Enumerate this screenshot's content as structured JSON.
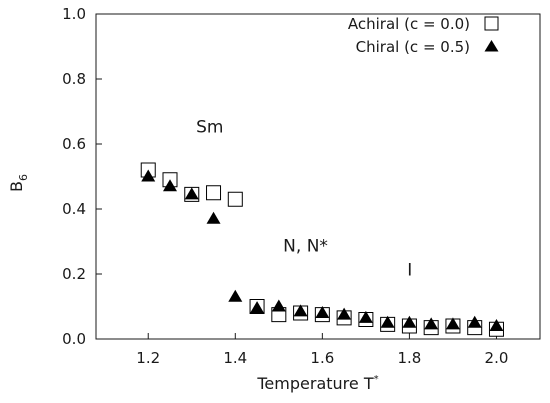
{
  "chart_data": {
    "type": "scatter",
    "xlabel": "Temperature",
    "xlabel_symbol": "T",
    "xlabel_superscript": "*",
    "ylabel": "B",
    "ylabel_subscript": "6",
    "xlim": [
      1.08,
      2.1
    ],
    "ylim": [
      0,
      1.0
    ],
    "x_ticks": [
      "1.2",
      "1.4",
      "1.6",
      "1.8",
      "2.0"
    ],
    "y_ticks": [
      "0.0",
      "0.2",
      "0.4",
      "0.6",
      "0.8",
      "1.0"
    ],
    "x_tick_values": [
      1.2,
      1.4,
      1.6,
      1.8,
      2.0
    ],
    "y_tick_values": [
      0.0,
      0.2,
      0.4,
      0.6,
      0.8,
      1.0
    ],
    "grid": false,
    "legend_position": "top-right",
    "annotations": [
      {
        "text": "Sm",
        "x": 1.31,
        "y": 0.635
      },
      {
        "text": "N, N*",
        "x": 1.51,
        "y": 0.27
      },
      {
        "text": "I",
        "x": 1.795,
        "y": 0.195
      }
    ],
    "series": [
      {
        "name": "Achiral (c = 0.0)",
        "marker": "open-square",
        "color": "#000000",
        "x": [
          1.2,
          1.25,
          1.3,
          1.35,
          1.4,
          1.45,
          1.5,
          1.55,
          1.6,
          1.65,
          1.7,
          1.75,
          1.8,
          1.85,
          1.9,
          1.95,
          2.0
        ],
        "y": [
          0.52,
          0.49,
          0.445,
          0.45,
          0.43,
          0.1,
          0.075,
          0.08,
          0.075,
          0.065,
          0.06,
          0.045,
          0.04,
          0.035,
          0.04,
          0.035,
          0.03
        ]
      },
      {
        "name": "Chiral (c = 0.5)",
        "marker": "filled-triangle",
        "color": "#000000",
        "x": [
          1.2,
          1.25,
          1.3,
          1.35,
          1.4,
          1.45,
          1.5,
          1.55,
          1.6,
          1.65,
          1.7,
          1.75,
          1.8,
          1.85,
          1.9,
          1.95,
          2.0
        ],
        "y": [
          0.5,
          0.47,
          0.445,
          0.37,
          0.13,
          0.095,
          0.1,
          0.085,
          0.08,
          0.075,
          0.065,
          0.05,
          0.05,
          0.045,
          0.045,
          0.05,
          0.04
        ]
      }
    ]
  }
}
